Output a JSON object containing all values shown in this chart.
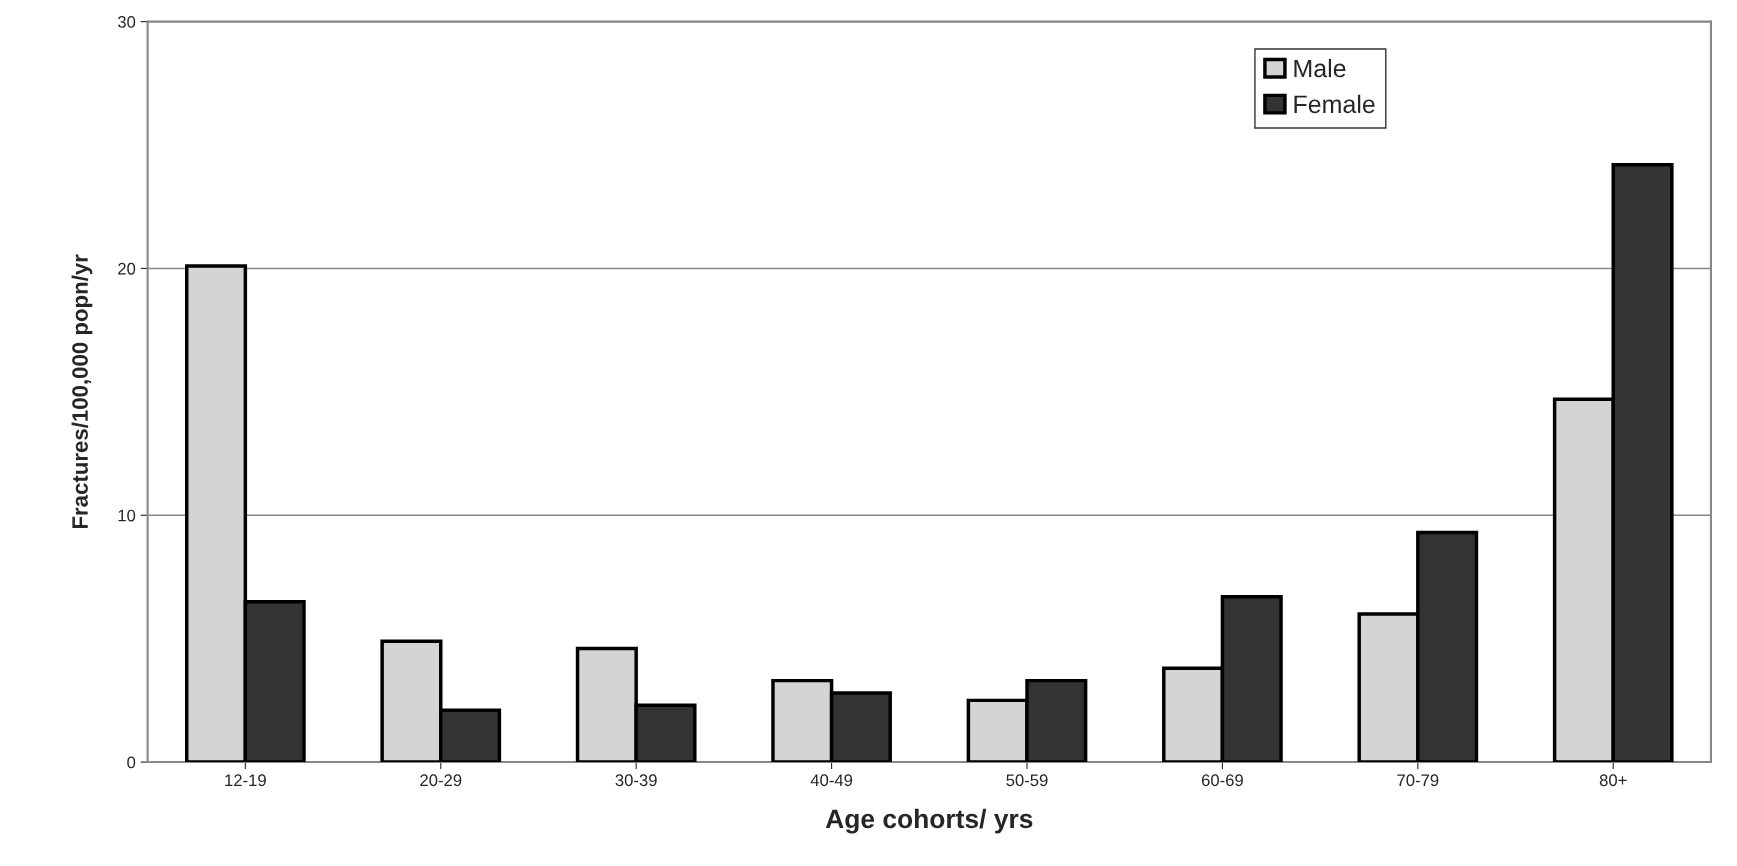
{
  "chart_data": {
    "type": "bar",
    "xlabel": "Age cohorts/ yrs",
    "ylabel": "Fractures/100,000 popn/yr",
    "categories": [
      "12-19",
      "20-29",
      "30-39",
      "40-49",
      "50-59",
      "60-69",
      "70-79",
      "80+"
    ],
    "series": [
      {
        "name": "Male",
        "color": "#d4d4d4",
        "values": [
          20.1,
          4.9,
          4.6,
          3.3,
          2.5,
          3.8,
          6.0,
          14.7
        ]
      },
      {
        "name": "Female",
        "color": "#333333",
        "values": [
          6.5,
          2.1,
          2.3,
          2.8,
          3.3,
          6.7,
          9.3,
          24.2
        ]
      }
    ],
    "ylim": [
      0,
      30
    ],
    "yticks": [
      0,
      10,
      20,
      30
    ],
    "grid": "y",
    "legend": "top right"
  }
}
